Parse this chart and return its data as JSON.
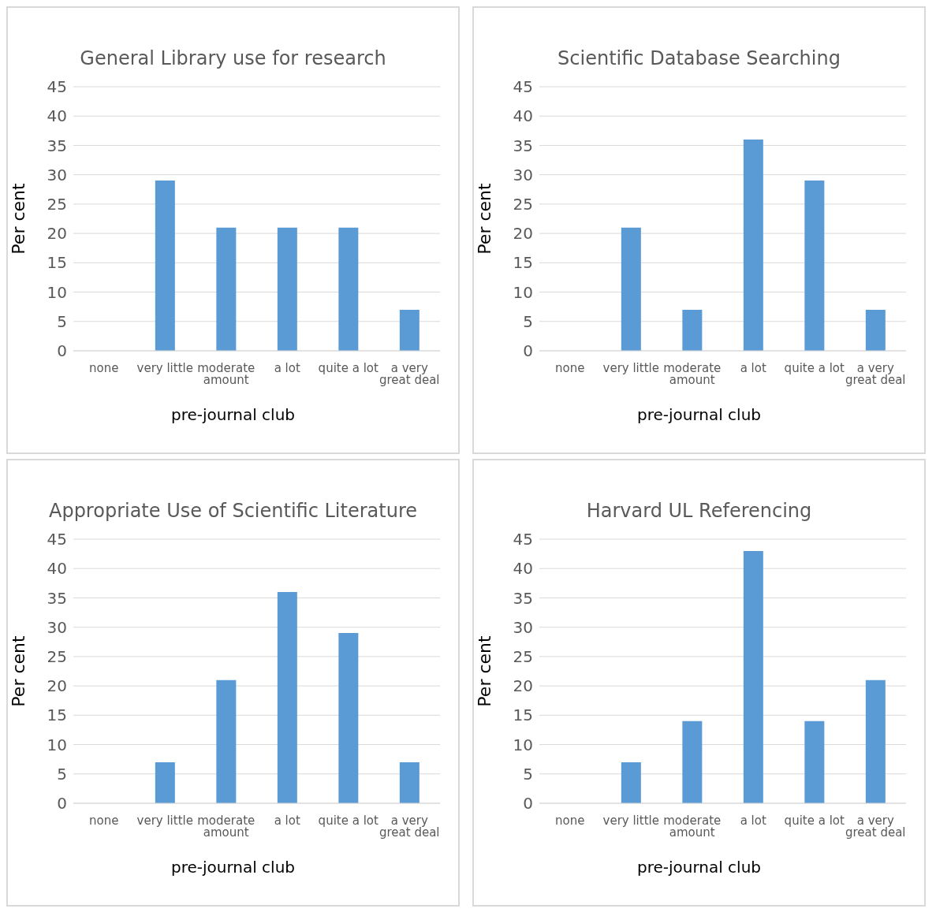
{
  "chart_data": [
    {
      "type": "bar",
      "title": "General Library use for research",
      "xlabel": "pre-journal club",
      "ylabel": "Per cent",
      "categories": [
        "none",
        "very little",
        "moderate amount",
        "a lot",
        "quite a lot",
        "a very great deal"
      ],
      "values": [
        0,
        29,
        21,
        21,
        21,
        7
      ],
      "color": "#5b9bd5",
      "ylim": [
        0,
        45
      ],
      "yticks": [
        0,
        5,
        10,
        15,
        20,
        25,
        30,
        35,
        40,
        45
      ],
      "grid": "y",
      "legend": false
    },
    {
      "type": "bar",
      "title": "Scientific Database Searching",
      "xlabel": "pre-journal club",
      "ylabel": "Per cent",
      "categories": [
        "none",
        "very little",
        "moderate amount",
        "a lot",
        "quite a lot",
        "a very great deal"
      ],
      "values": [
        0,
        21,
        7,
        36,
        29,
        7
      ],
      "color": "#5b9bd5",
      "ylim": [
        0,
        45
      ],
      "yticks": [
        0,
        5,
        10,
        15,
        20,
        25,
        30,
        35,
        40,
        45
      ],
      "grid": "y",
      "legend": false
    },
    {
      "type": "bar",
      "title": "Appropriate Use of Scientific Literature",
      "xlabel": "pre-journal club",
      "ylabel": "Per cent",
      "categories": [
        "none",
        "very little",
        "moderate amount",
        "a lot",
        "quite a lot",
        "a very great deal"
      ],
      "values": [
        0,
        7,
        21,
        36,
        29,
        7
      ],
      "color": "#5b9bd5",
      "ylim": [
        0,
        45
      ],
      "yticks": [
        0,
        5,
        10,
        15,
        20,
        25,
        30,
        35,
        40,
        45
      ],
      "grid": "y",
      "legend": false
    },
    {
      "type": "bar",
      "title": "Harvard UL Referencing",
      "xlabel": "pre-journal club",
      "ylabel": "Per cent",
      "categories": [
        "none",
        "very little",
        "moderate amount",
        "a lot",
        "quite a lot",
        "a very great deal"
      ],
      "values": [
        0,
        7,
        14,
        43,
        14,
        21
      ],
      "color": "#5b9bd5",
      "ylim": [
        0,
        45
      ],
      "yticks": [
        0,
        5,
        10,
        15,
        20,
        25,
        30,
        35,
        40,
        45
      ],
      "grid": "y",
      "legend": false
    }
  ]
}
